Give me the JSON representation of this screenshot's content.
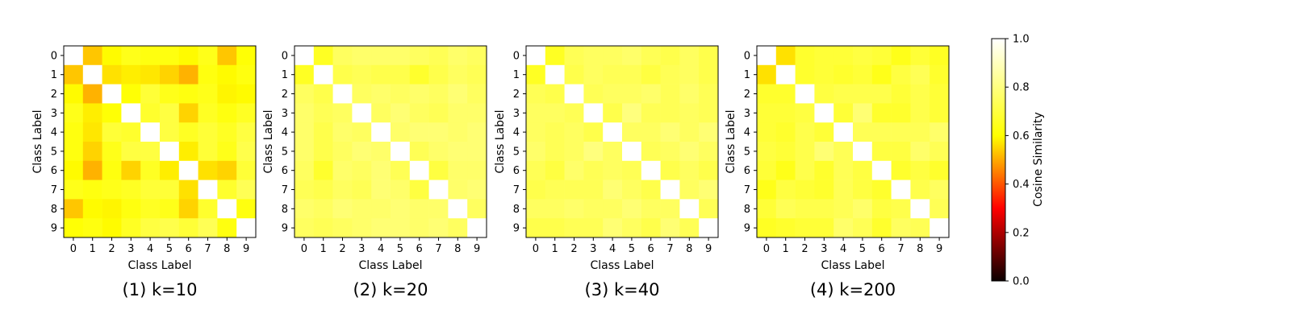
{
  "chart_data": [
    {
      "type": "heatmap",
      "caption": "(1) k=10",
      "xlabel": "Class Label",
      "ylabel": "Class Label",
      "x_ticks": [
        "0",
        "1",
        "2",
        "3",
        "4",
        "5",
        "6",
        "7",
        "8",
        "9"
      ],
      "y_ticks": [
        "0",
        "1",
        "2",
        "3",
        "4",
        "5",
        "6",
        "7",
        "8",
        "9"
      ],
      "values": [
        [
          1.0,
          0.66,
          0.74,
          0.77,
          0.76,
          0.76,
          0.74,
          0.77,
          0.66,
          0.75
        ],
        [
          0.66,
          1.0,
          0.7,
          0.72,
          0.71,
          0.68,
          0.63,
          0.76,
          0.74,
          0.76
        ],
        [
          0.74,
          0.63,
          1.0,
          0.75,
          0.8,
          0.77,
          0.76,
          0.77,
          0.73,
          0.74
        ],
        [
          0.77,
          0.72,
          0.75,
          1.0,
          0.79,
          0.81,
          0.68,
          0.78,
          0.76,
          0.78
        ],
        [
          0.76,
          0.71,
          0.8,
          0.79,
          1.0,
          0.81,
          0.78,
          0.8,
          0.78,
          0.81
        ],
        [
          0.76,
          0.68,
          0.77,
          0.81,
          0.81,
          1.0,
          0.72,
          0.8,
          0.77,
          0.82
        ],
        [
          0.74,
          0.63,
          0.76,
          0.68,
          0.78,
          0.72,
          1.0,
          0.7,
          0.68,
          0.8
        ],
        [
          0.77,
          0.76,
          0.77,
          0.78,
          0.8,
          0.8,
          0.7,
          1.0,
          0.79,
          0.83
        ],
        [
          0.66,
          0.74,
          0.73,
          0.76,
          0.78,
          0.77,
          0.68,
          0.79,
          1.0,
          0.76
        ],
        [
          0.75,
          0.76,
          0.74,
          0.78,
          0.81,
          0.82,
          0.8,
          0.83,
          0.76,
          1.0
        ]
      ]
    },
    {
      "type": "heatmap",
      "caption": "(2) k=20",
      "xlabel": "Class Label",
      "ylabel": "Class Label",
      "x_ticks": [
        "0",
        "1",
        "2",
        "3",
        "4",
        "5",
        "6",
        "7",
        "8",
        "9"
      ],
      "y_ticks": [
        "0",
        "1",
        "2",
        "3",
        "4",
        "5",
        "6",
        "7",
        "8",
        "9"
      ],
      "values": [
        [
          1.0,
          0.78,
          0.84,
          0.85,
          0.85,
          0.85,
          0.84,
          0.83,
          0.85,
          0.84
        ],
        [
          0.78,
          1.0,
          0.82,
          0.83,
          0.82,
          0.82,
          0.79,
          0.82,
          0.84,
          0.83
        ],
        [
          0.84,
          0.82,
          1.0,
          0.84,
          0.85,
          0.84,
          0.85,
          0.84,
          0.86,
          0.84
        ],
        [
          0.85,
          0.83,
          0.84,
          1.0,
          0.84,
          0.86,
          0.84,
          0.83,
          0.85,
          0.85
        ],
        [
          0.85,
          0.82,
          0.85,
          0.84,
          1.0,
          0.85,
          0.86,
          0.86,
          0.85,
          0.86
        ],
        [
          0.85,
          0.82,
          0.84,
          0.86,
          0.85,
          1.0,
          0.83,
          0.85,
          0.86,
          0.86
        ],
        [
          0.84,
          0.79,
          0.85,
          0.84,
          0.86,
          0.83,
          1.0,
          0.81,
          0.85,
          0.85
        ],
        [
          0.83,
          0.82,
          0.84,
          0.83,
          0.86,
          0.85,
          0.81,
          1.0,
          0.85,
          0.86
        ],
        [
          0.85,
          0.84,
          0.86,
          0.85,
          0.85,
          0.86,
          0.85,
          0.85,
          1.0,
          0.84
        ],
        [
          0.84,
          0.83,
          0.84,
          0.85,
          0.86,
          0.86,
          0.85,
          0.86,
          0.84,
          1.0
        ]
      ]
    },
    {
      "type": "heatmap",
      "caption": "(3) k=40",
      "xlabel": "Class Label",
      "ylabel": "Class Label",
      "x_ticks": [
        "0",
        "1",
        "2",
        "3",
        "4",
        "5",
        "6",
        "7",
        "8",
        "9"
      ],
      "y_ticks": [
        "0",
        "1",
        "2",
        "3",
        "4",
        "5",
        "6",
        "7",
        "8",
        "9"
      ],
      "values": [
        [
          1.0,
          0.78,
          0.83,
          0.84,
          0.84,
          0.85,
          0.83,
          0.82,
          0.84,
          0.82
        ],
        [
          0.78,
          1.0,
          0.82,
          0.84,
          0.83,
          0.83,
          0.81,
          0.83,
          0.84,
          0.82
        ],
        [
          0.83,
          0.82,
          1.0,
          0.83,
          0.84,
          0.84,
          0.85,
          0.83,
          0.85,
          0.83
        ],
        [
          0.84,
          0.84,
          0.83,
          1.0,
          0.82,
          0.87,
          0.83,
          0.83,
          0.84,
          0.83
        ],
        [
          0.84,
          0.83,
          0.84,
          0.82,
          1.0,
          0.84,
          0.84,
          0.86,
          0.84,
          0.86
        ],
        [
          0.85,
          0.83,
          0.84,
          0.87,
          0.84,
          1.0,
          0.83,
          0.84,
          0.86,
          0.84
        ],
        [
          0.83,
          0.81,
          0.85,
          0.83,
          0.84,
          0.83,
          1.0,
          0.82,
          0.84,
          0.82
        ],
        [
          0.82,
          0.83,
          0.83,
          0.83,
          0.86,
          0.84,
          0.82,
          1.0,
          0.84,
          0.86
        ],
        [
          0.84,
          0.84,
          0.85,
          0.84,
          0.84,
          0.86,
          0.84,
          0.84,
          1.0,
          0.83
        ],
        [
          0.82,
          0.82,
          0.83,
          0.83,
          0.86,
          0.84,
          0.82,
          0.86,
          0.83,
          1.0
        ]
      ]
    },
    {
      "type": "heatmap",
      "caption": "(4) k=200",
      "xlabel": "Class Label",
      "ylabel": "Class Label",
      "x_ticks": [
        "0",
        "1",
        "2",
        "3",
        "4",
        "5",
        "6",
        "7",
        "8",
        "9"
      ],
      "y_ticks": [
        "0",
        "1",
        "2",
        "3",
        "4",
        "5",
        "6",
        "7",
        "8",
        "9"
      ],
      "values": [
        [
          1.0,
          0.7,
          0.79,
          0.8,
          0.8,
          0.81,
          0.8,
          0.77,
          0.8,
          0.78
        ],
        [
          0.7,
          1.0,
          0.79,
          0.8,
          0.79,
          0.8,
          0.77,
          0.81,
          0.83,
          0.79
        ],
        [
          0.79,
          0.79,
          1.0,
          0.81,
          0.82,
          0.82,
          0.82,
          0.8,
          0.82,
          0.8
        ],
        [
          0.8,
          0.8,
          0.81,
          1.0,
          0.8,
          0.86,
          0.79,
          0.79,
          0.82,
          0.8
        ],
        [
          0.8,
          0.79,
          0.82,
          0.8,
          1.0,
          0.83,
          0.83,
          0.83,
          0.83,
          0.85
        ],
        [
          0.81,
          0.8,
          0.82,
          0.86,
          0.83,
          1.0,
          0.81,
          0.81,
          0.85,
          0.83
        ],
        [
          0.8,
          0.77,
          0.82,
          0.79,
          0.83,
          0.81,
          1.0,
          0.79,
          0.81,
          0.79
        ],
        [
          0.77,
          0.81,
          0.8,
          0.79,
          0.83,
          0.81,
          0.79,
          1.0,
          0.82,
          0.84
        ],
        [
          0.8,
          0.83,
          0.82,
          0.82,
          0.83,
          0.85,
          0.81,
          0.82,
          1.0,
          0.83
        ],
        [
          0.78,
          0.79,
          0.8,
          0.8,
          0.85,
          0.83,
          0.79,
          0.84,
          0.83,
          1.0
        ]
      ]
    }
  ],
  "colorbar": {
    "label": "Cosine Similarity",
    "colormap": "hot",
    "vmin": 0.0,
    "vmax": 1.0,
    "ticks": [
      "0.0",
      "0.2",
      "0.4",
      "0.6",
      "0.8",
      "1.0"
    ]
  }
}
